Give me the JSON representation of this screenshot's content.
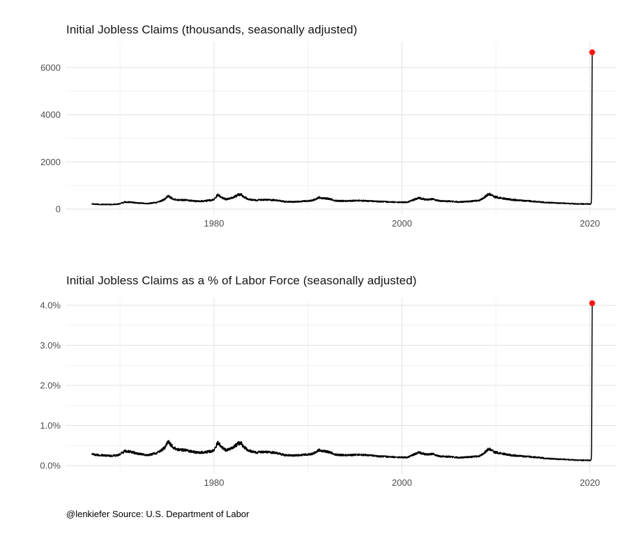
{
  "page": {
    "caption": "@lenkiefer Source: U.S. Department of Labor"
  },
  "colors": {
    "line": "#000000",
    "point": "#fb1511",
    "grid_major": "#e2e2e2",
    "grid_minor": "#f1f1f1",
    "tick_label": "#4d4d4d",
    "title": "#141414"
  },
  "chart_data": [
    {
      "type": "line",
      "title": "Initial Jobless Claims (thousands, seasonally adjusted)",
      "series_name": "initial-jobless-claims-thousands",
      "x_range": [
        1967,
        2020.25
      ],
      "xlim": [
        1964.3,
        2022.8
      ],
      "ylim": [
        0,
        6900
      ],
      "grid": true,
      "legend": "none",
      "x_ticks": [
        {
          "value": 1980,
          "label": "1980"
        },
        {
          "value": 2000,
          "label": "2000"
        },
        {
          "value": 2020,
          "label": "2020"
        }
      ],
      "x_minor": [
        1970,
        1990,
        2010
      ],
      "y_ticks": [
        {
          "value": 0,
          "label": "0"
        },
        {
          "value": 2000,
          "label": "2000"
        },
        {
          "value": 4000,
          "label": "4000"
        },
        {
          "value": 6000,
          "label": "6000"
        }
      ],
      "y_minor": [
        1000,
        3000,
        5000
      ],
      "points": [
        [
          1967,
          225
        ],
        [
          1967.3,
          210
        ],
        [
          1968,
          200
        ],
        [
          1969,
          193
        ],
        [
          1969.8,
          210
        ],
        [
          1970.5,
          295
        ],
        [
          1971,
          295
        ],
        [
          1972,
          255
        ],
        [
          1973,
          235
        ],
        [
          1974,
          290
        ],
        [
          1974.8,
          420
        ],
        [
          1975.1,
          555
        ],
        [
          1975.6,
          440
        ],
        [
          1976,
          385
        ],
        [
          1977,
          380
        ],
        [
          1978,
          335
        ],
        [
          1979,
          345
        ],
        [
          1980,
          395
        ],
        [
          1980.4,
          615
        ],
        [
          1980.9,
          470
        ],
        [
          1981.3,
          415
        ],
        [
          1981.9,
          475
        ],
        [
          1982.4,
          570
        ],
        [
          1982.8,
          640
        ],
        [
          1983.2,
          510
        ],
        [
          1983.7,
          410
        ],
        [
          1984.5,
          380
        ],
        [
          1985.5,
          395
        ],
        [
          1986.5,
          380
        ],
        [
          1987.5,
          315
        ],
        [
          1988.5,
          305
        ],
        [
          1989.5,
          335
        ],
        [
          1990.5,
          365
        ],
        [
          1991.2,
          495
        ],
        [
          1991.8,
          445
        ],
        [
          1992.2,
          440
        ],
        [
          1993,
          350
        ],
        [
          1994,
          345
        ],
        [
          1995.5,
          360
        ],
        [
          1996.5,
          345
        ],
        [
          1997.5,
          320
        ],
        [
          1998.5,
          305
        ],
        [
          1999.5,
          295
        ],
        [
          2000.5,
          285
        ],
        [
          2001.2,
          390
        ],
        [
          2001.8,
          475
        ],
        [
          2002.5,
          405
        ],
        [
          2003.3,
          425
        ],
        [
          2004,
          345
        ],
        [
          2005,
          330
        ],
        [
          2006,
          305
        ],
        [
          2007,
          320
        ],
        [
          2008.2,
          360
        ],
        [
          2008.8,
          500
        ],
        [
          2009.25,
          645
        ],
        [
          2009.8,
          530
        ],
        [
          2010.5,
          460
        ],
        [
          2011.5,
          405
        ],
        [
          2012.5,
          370
        ],
        [
          2013.5,
          340
        ],
        [
          2014.5,
          305
        ],
        [
          2015.5,
          275
        ],
        [
          2016.5,
          260
        ],
        [
          2017.5,
          242
        ],
        [
          2018.5,
          222
        ],
        [
          2019.5,
          215
        ],
        [
          2020.08,
          212
        ],
        [
          2020.17,
          282
        ],
        [
          2020.205,
          3307
        ],
        [
          2020.245,
          6648
        ]
      ],
      "end_point": {
        "x": 2020.245,
        "y": 6648
      }
    },
    {
      "type": "line",
      "title": "Initial Jobless Claims as a % of Labor Force (seasonally adjusted)",
      "series_name": "initial-jobless-claims-percent-labor-force",
      "x_range": [
        1967,
        2020.25
      ],
      "xlim": [
        1964.3,
        2022.8
      ],
      "ylim": [
        0,
        4.2
      ],
      "grid": true,
      "legend": "none",
      "x_ticks": [
        {
          "value": 1980,
          "label": "1980"
        },
        {
          "value": 2000,
          "label": "2000"
        },
        {
          "value": 2020,
          "label": "2020"
        }
      ],
      "x_minor": [
        1970,
        1990,
        2010
      ],
      "y_ticks": [
        {
          "value": 0,
          "label": "0.0%"
        },
        {
          "value": 1,
          "label": "1.0%"
        },
        {
          "value": 2,
          "label": "2.0%"
        },
        {
          "value": 3,
          "label": "3.0%"
        },
        {
          "value": 4,
          "label": "4.0%"
        }
      ],
      "y_minor": [
        0.5,
        1.5,
        2.5,
        3.5
      ],
      "points": [
        [
          1967,
          0.3
        ],
        [
          1967.3,
          0.27
        ],
        [
          1968,
          0.26
        ],
        [
          1969,
          0.24
        ],
        [
          1969.8,
          0.26
        ],
        [
          1970.5,
          0.36
        ],
        [
          1971,
          0.35
        ],
        [
          1972,
          0.29
        ],
        [
          1973,
          0.26
        ],
        [
          1974,
          0.32
        ],
        [
          1974.8,
          0.45
        ],
        [
          1975.1,
          0.6
        ],
        [
          1975.6,
          0.47
        ],
        [
          1976,
          0.4
        ],
        [
          1977,
          0.38
        ],
        [
          1978,
          0.33
        ],
        [
          1979,
          0.33
        ],
        [
          1980,
          0.37
        ],
        [
          1980.4,
          0.58
        ],
        [
          1980.9,
          0.44
        ],
        [
          1981.3,
          0.38
        ],
        [
          1981.9,
          0.44
        ],
        [
          1982.4,
          0.52
        ],
        [
          1982.8,
          0.58
        ],
        [
          1983.2,
          0.46
        ],
        [
          1983.7,
          0.37
        ],
        [
          1984.5,
          0.33
        ],
        [
          1985.5,
          0.34
        ],
        [
          1986.5,
          0.32
        ],
        [
          1987.5,
          0.26
        ],
        [
          1988.5,
          0.25
        ],
        [
          1989.5,
          0.27
        ],
        [
          1990.5,
          0.29
        ],
        [
          1991.2,
          0.39
        ],
        [
          1991.8,
          0.35
        ],
        [
          1992.2,
          0.34
        ],
        [
          1993,
          0.27
        ],
        [
          1994,
          0.26
        ],
        [
          1995.5,
          0.27
        ],
        [
          1996.5,
          0.26
        ],
        [
          1997.5,
          0.23
        ],
        [
          1998.5,
          0.22
        ],
        [
          1999.5,
          0.21
        ],
        [
          2000.5,
          0.2
        ],
        [
          2001.2,
          0.27
        ],
        [
          2001.8,
          0.33
        ],
        [
          2002.5,
          0.28
        ],
        [
          2003.3,
          0.29
        ],
        [
          2004,
          0.23
        ],
        [
          2005,
          0.22
        ],
        [
          2006,
          0.2
        ],
        [
          2007,
          0.21
        ],
        [
          2008.2,
          0.23
        ],
        [
          2008.8,
          0.32
        ],
        [
          2009.25,
          0.42
        ],
        [
          2009.8,
          0.34
        ],
        [
          2010.5,
          0.3
        ],
        [
          2011.5,
          0.26
        ],
        [
          2012.5,
          0.24
        ],
        [
          2013.5,
          0.22
        ],
        [
          2014.5,
          0.2
        ],
        [
          2015.5,
          0.175
        ],
        [
          2016.5,
          0.163
        ],
        [
          2017.5,
          0.151
        ],
        [
          2018.5,
          0.137
        ],
        [
          2019.5,
          0.131
        ],
        [
          2020.08,
          0.129
        ],
        [
          2020.17,
          0.171
        ],
        [
          2020.205,
          2.01
        ],
        [
          2020.245,
          4.05
        ]
      ],
      "end_point": {
        "x": 2020.245,
        "y": 4.05
      }
    }
  ]
}
